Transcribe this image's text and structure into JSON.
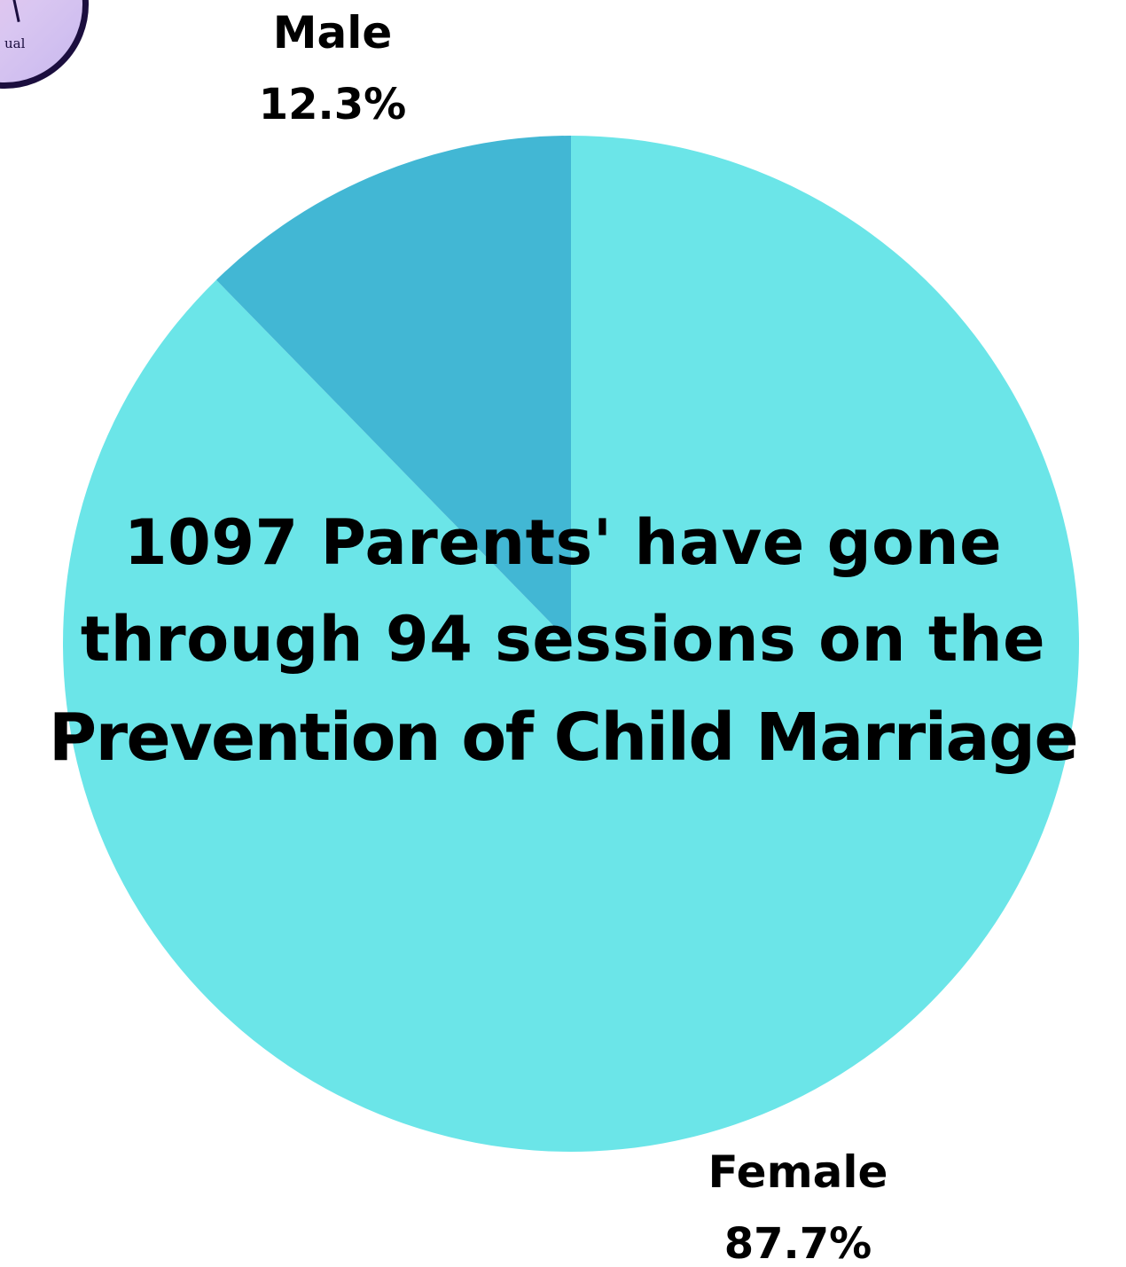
{
  "logo": {
    "text": "ual"
  },
  "colors": {
    "male": "#42b7d4",
    "female": "#6be5e8",
    "text": "#000000"
  },
  "headline": {
    "line1": "1097 Parents' have gone",
    "line2": "through 94 sessions on the",
    "line3": "Prevention of  Child Marriage"
  },
  "chart_data": {
    "type": "pie",
    "categories": [
      "Male",
      "Female"
    ],
    "values": [
      12.3,
      87.7
    ],
    "labels": [
      {
        "name": "Male",
        "value_text": "12.3%"
      },
      {
        "name": "Female",
        "value_text": "87.7%"
      }
    ],
    "unit": "%",
    "start_angle": "12 o'clock, clockwise order: Female then Male"
  }
}
